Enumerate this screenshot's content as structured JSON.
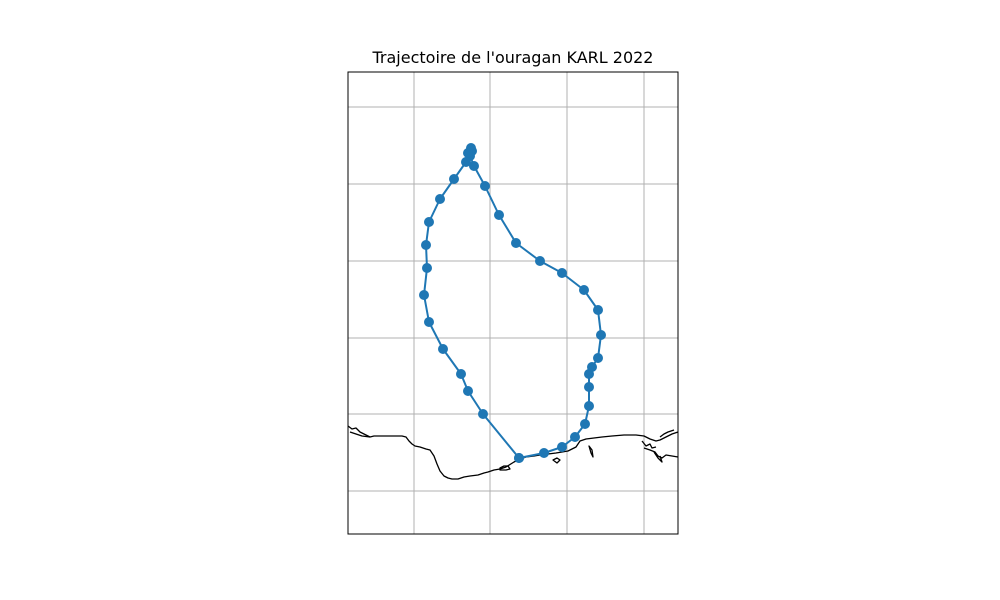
{
  "title": "Trajectoire de l'ouragan KARL 2022",
  "colors": {
    "track": "#1f77b4",
    "grid": "#b0b0b0",
    "coast": "#000000"
  },
  "map": {
    "projection": "PlateCarree",
    "gridlines": true,
    "tick_labels_shown": false
  },
  "track": {
    "name": "KARL",
    "year": 2022,
    "marker": "circle",
    "points_shown": 38
  }
}
